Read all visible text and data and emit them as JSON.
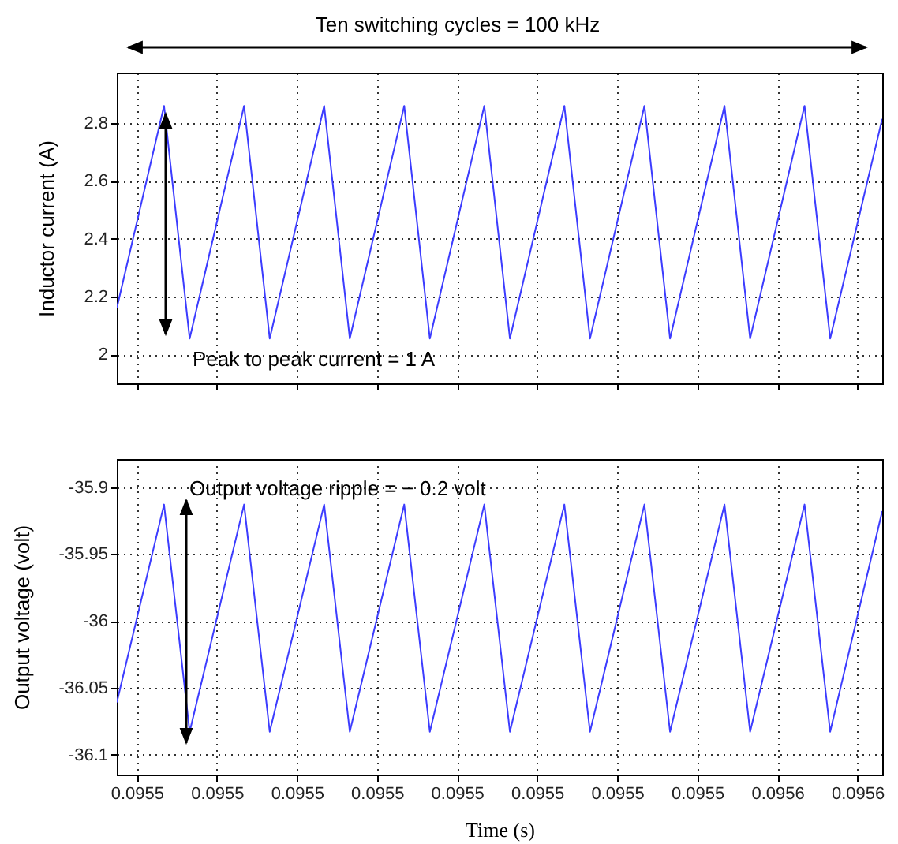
{
  "chart_data": [
    {
      "type": "line",
      "ylabel": "Inductor current (A)",
      "x": [
        0.0954725,
        0.0954784,
        0.0954816,
        0.0954884,
        0.0954916,
        0.0954984,
        0.0955016,
        0.0955084,
        0.0955116,
        0.0955184,
        0.0955216,
        0.0955284,
        0.0955316,
        0.0955384,
        0.0955416,
        0.0955484,
        0.0955516,
        0.0955584,
        0.0955616,
        0.0955681
      ],
      "series": [
        {
          "color": "#3c3cff",
          "values": [
            2.16,
            2.86,
            2.055,
            2.86,
            2.055,
            2.86,
            2.055,
            2.86,
            2.055,
            2.86,
            2.055,
            2.86,
            2.055,
            2.86,
            2.055,
            2.86,
            2.055,
            2.86,
            2.055,
            2.815
          ]
        }
      ],
      "xlim": [
        0.0954725,
        0.0955681
      ],
      "xticks": [
        {
          "value": 0.095475,
          "label": null
        },
        {
          "value": 0.095485,
          "label": null
        },
        {
          "value": 0.095495,
          "label": null
        },
        {
          "value": 0.095505,
          "label": null
        },
        {
          "value": 0.095515,
          "label": null
        },
        {
          "value": 0.095525,
          "label": null
        },
        {
          "value": 0.095535,
          "label": null
        },
        {
          "value": 0.095545,
          "label": null
        },
        {
          "value": 0.095555,
          "label": null
        },
        {
          "value": 0.095565,
          "label": null
        }
      ],
      "ylim": [
        1.9,
        2.975
      ],
      "yticks": [
        2,
        2.2,
        2.4,
        2.6,
        2.8
      ],
      "grid": true,
      "tick_labels": "y",
      "annotations": [
        "Ten switching cycles = 100 kHz",
        "Peak to peak current = 1 A"
      ]
    },
    {
      "type": "line",
      "xlabel": "Time (s)",
      "ylabel": "Output voltage (volt)",
      "x": [
        0.0954725,
        0.0954784,
        0.0954816,
        0.0954884,
        0.0954916,
        0.0954984,
        0.0955016,
        0.0955084,
        0.0955116,
        0.0955184,
        0.0955216,
        0.0955284,
        0.0955316,
        0.0955384,
        0.0955416,
        0.0955484,
        0.0955516,
        0.0955584,
        0.0955616,
        0.0955681
      ],
      "series": [
        {
          "color": "#3c3cff",
          "values": [
            -36.061,
            -35.913,
            -36.083,
            -35.913,
            -36.083,
            -35.913,
            -36.083,
            -35.913,
            -36.083,
            -35.913,
            -36.083,
            -35.913,
            -36.083,
            -35.913,
            -36.083,
            -35.913,
            -36.083,
            -35.913,
            -36.083,
            -35.918
          ]
        }
      ],
      "xlim": [
        0.0954725,
        0.0955681
      ],
      "xticks": [
        {
          "value": 0.095475,
          "label": "0.0955"
        },
        {
          "value": 0.095485,
          "label": "0.0955"
        },
        {
          "value": 0.095495,
          "label": "0.0955"
        },
        {
          "value": 0.095505,
          "label": "0.0955"
        },
        {
          "value": 0.095515,
          "label": "0.0955"
        },
        {
          "value": 0.095525,
          "label": "0.0955"
        },
        {
          "value": 0.095535,
          "label": "0.0955"
        },
        {
          "value": 0.095545,
          "label": "0.0955"
        },
        {
          "value": 0.095555,
          "label": "0.0956"
        },
        {
          "value": 0.095565,
          "label": "0.0956"
        }
      ],
      "ylim": [
        -36.115,
        -35.879
      ],
      "yticks": [
        -36.1,
        -36.05,
        -36,
        -35.95,
        -35.9
      ],
      "grid": true,
      "annotations": [
        "Output voltage ripple = − 0.2 volt"
      ]
    }
  ]
}
